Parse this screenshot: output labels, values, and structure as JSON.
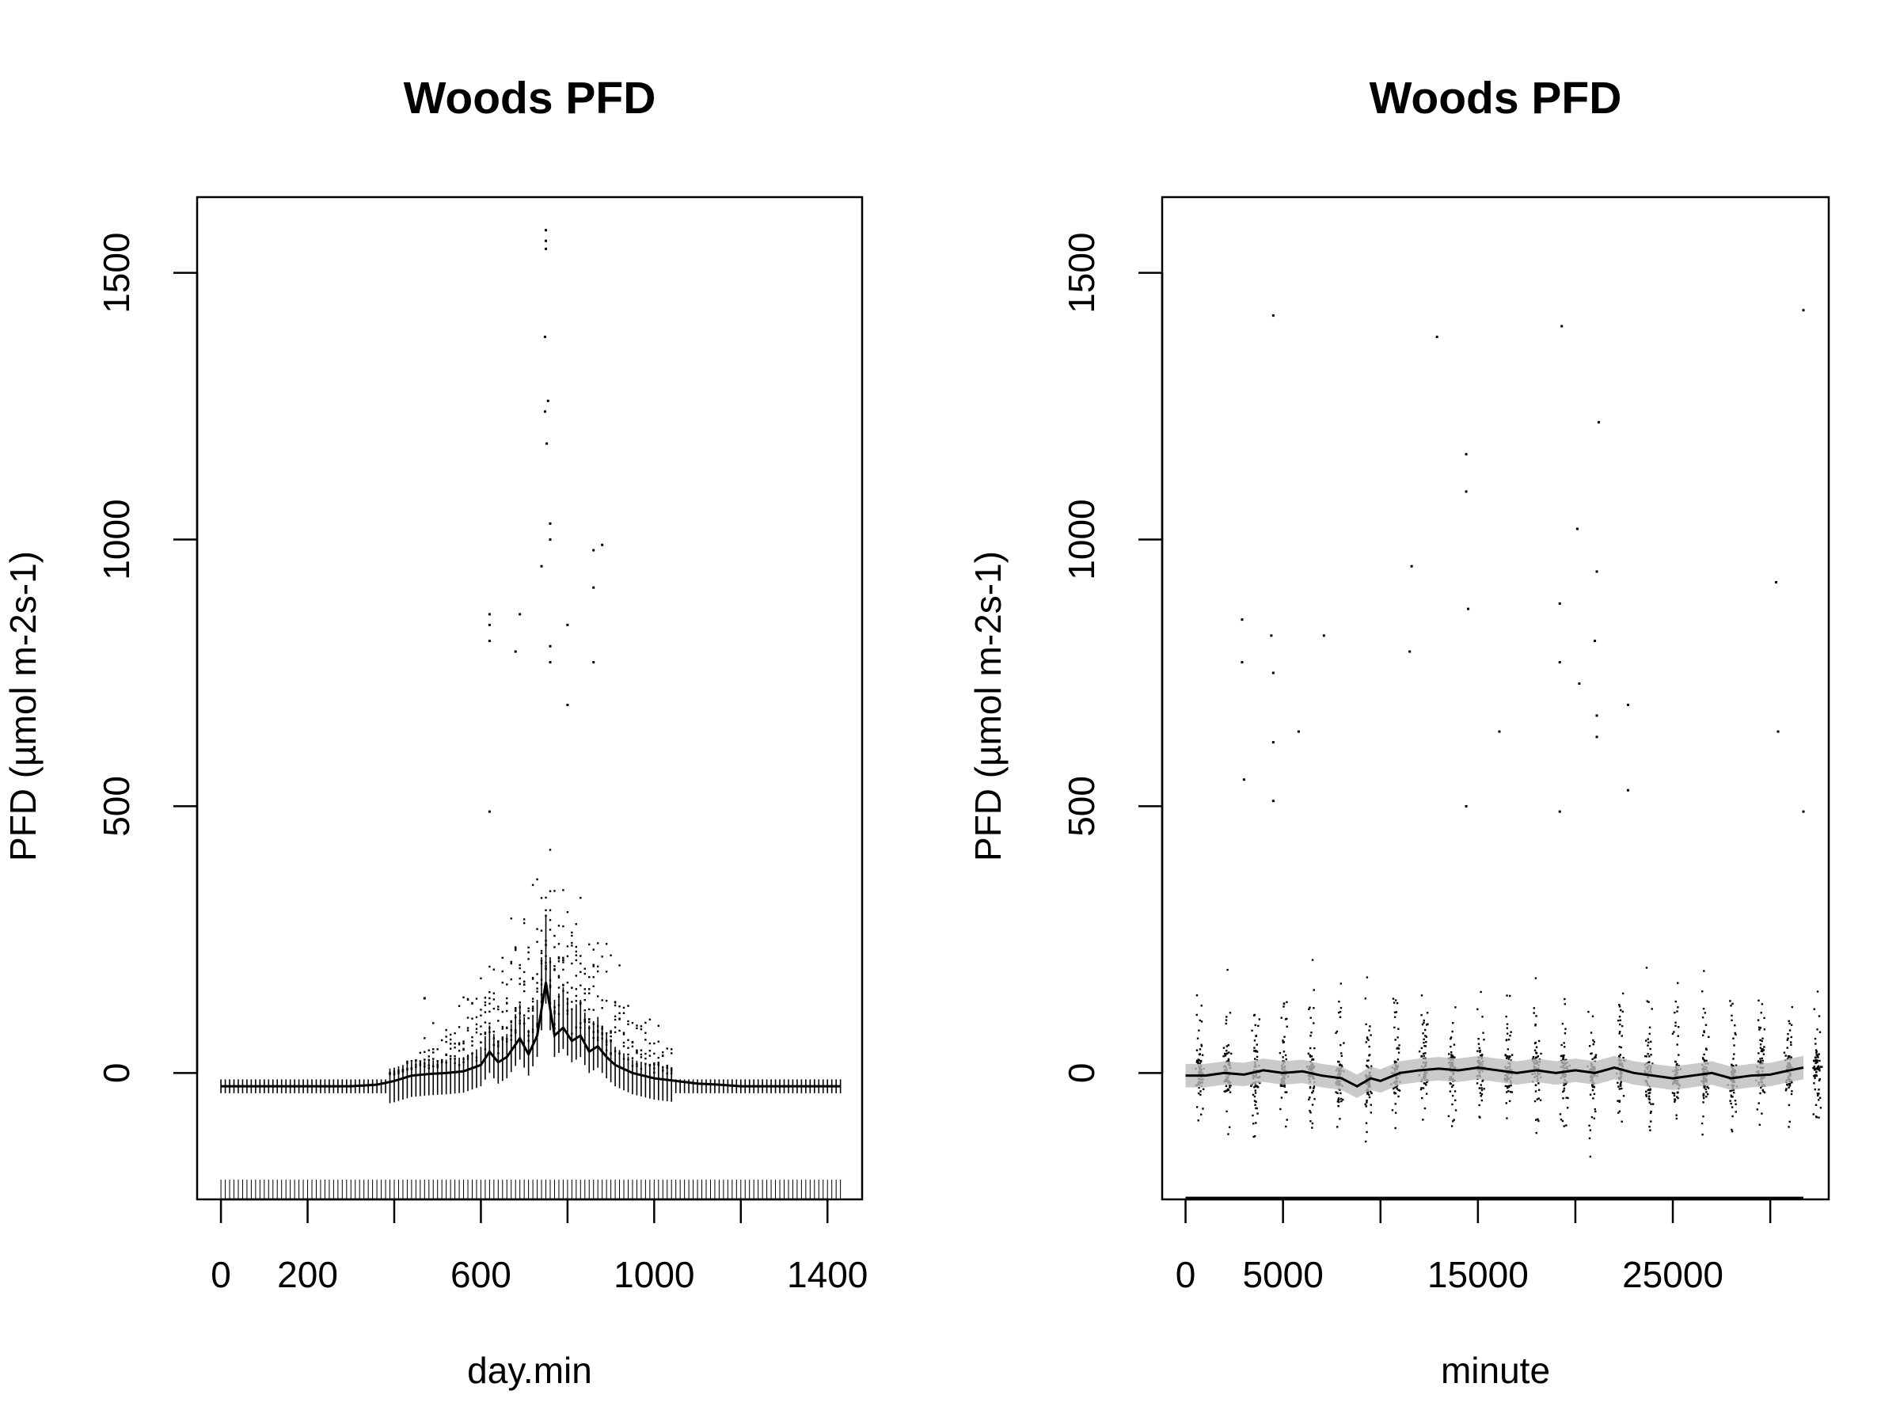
{
  "chart_data": [
    {
      "type": "scatter",
      "title": "Woods PFD",
      "xlabel": "day.min",
      "ylabel": "PFD (µmol m-2s-1)",
      "xlim": [
        -55,
        1480
      ],
      "ylim": [
        -237,
        1642
      ],
      "xticks": [
        0,
        200,
        400,
        600,
        800,
        1000,
        1200,
        1400
      ],
      "xtick_labels": [
        "0",
        "200",
        "",
        "600",
        "",
        "1000",
        "",
        "1400"
      ],
      "yticks": [
        0,
        500,
        1000,
        1500
      ],
      "ytick_labels": [
        "0",
        "500",
        "1000",
        "1500"
      ],
      "rug": "minute-of-day ticks along bottom",
      "smooth_line": {
        "x": [
          0,
          100,
          200,
          300,
          360,
          400,
          440,
          480,
          520,
          560,
          600,
          620,
          640,
          660,
          690,
          710,
          730,
          750,
          770,
          790,
          810,
          830,
          850,
          870,
          890,
          910,
          950,
          1000,
          1050,
          1100,
          1150,
          1200,
          1250,
          1300,
          1350,
          1430
        ],
        "y": [
          -25,
          -25,
          -25,
          -25,
          -22,
          -15,
          -5,
          -2,
          0,
          3,
          15,
          40,
          20,
          30,
          65,
          35,
          70,
          170,
          70,
          85,
          60,
          70,
          40,
          50,
          30,
          15,
          0,
          -10,
          -15,
          -20,
          -22,
          -25,
          -25,
          -25,
          -25,
          -25
        ]
      },
      "notable_points": [
        {
          "x": 750,
          "y": 1580
        },
        {
          "x": 750,
          "y": 1560
        },
        {
          "x": 750,
          "y": 1545
        },
        {
          "x": 748,
          "y": 1380
        },
        {
          "x": 755,
          "y": 1260
        },
        {
          "x": 748,
          "y": 1240
        },
        {
          "x": 752,
          "y": 1180
        },
        {
          "x": 760,
          "y": 1030
        },
        {
          "x": 760,
          "y": 1000
        },
        {
          "x": 740,
          "y": 950
        },
        {
          "x": 880,
          "y": 990
        },
        {
          "x": 860,
          "y": 980
        },
        {
          "x": 620,
          "y": 860
        },
        {
          "x": 620,
          "y": 840
        },
        {
          "x": 620,
          "y": 810
        },
        {
          "x": 690,
          "y": 860
        },
        {
          "x": 680,
          "y": 790
        },
        {
          "x": 860,
          "y": 910
        },
        {
          "x": 800,
          "y": 840
        },
        {
          "x": 760,
          "y": 800
        },
        {
          "x": 760,
          "y": 770
        },
        {
          "x": 860,
          "y": 770
        },
        {
          "x": 800,
          "y": 690
        },
        {
          "x": 620,
          "y": 490
        },
        {
          "x": 470,
          "y": 140
        }
      ]
    },
    {
      "type": "scatter",
      "title": "Woods PFD",
      "xlabel": "minute",
      "ylabel": "PFD (µmol m-2s-1)",
      "xlim": [
        -1200,
        33000
      ],
      "ylim": [
        -237,
        1642
      ],
      "xticks": [
        0,
        5000,
        10000,
        15000,
        20000,
        25000,
        30000
      ],
      "xtick_labels": [
        "0",
        "5000",
        "",
        "15000",
        "",
        "25000",
        ""
      ],
      "yticks": [
        0,
        500,
        1000,
        1500
      ],
      "ytick_labels": [
        "0",
        "500",
        "1000",
        "1500"
      ],
      "rug": "dense bar along bottom (0 to ~31700)",
      "smooth_line": {
        "x": [
          0,
          1000,
          2000,
          3000,
          4000,
          5000,
          6000,
          7000,
          8000,
          8800,
          9500,
          10000,
          11000,
          12000,
          13000,
          14000,
          15000,
          16000,
          17000,
          18000,
          19000,
          20000,
          21000,
          22000,
          23000,
          24000,
          25000,
          26000,
          27000,
          28000,
          29000,
          30000,
          31000,
          31700
        ],
        "y": [
          -5,
          -5,
          0,
          -3,
          5,
          0,
          3,
          -5,
          -10,
          -25,
          -10,
          -15,
          0,
          5,
          8,
          5,
          10,
          5,
          0,
          5,
          0,
          5,
          0,
          10,
          0,
          -5,
          -10,
          -5,
          0,
          -10,
          -5,
          -3,
          5,
          10
        ]
      },
      "notable_points": [
        {
          "x": 4500,
          "y": 1420
        },
        {
          "x": 12900,
          "y": 1380
        },
        {
          "x": 19300,
          "y": 1400
        },
        {
          "x": 31700,
          "y": 1430
        },
        {
          "x": 14400,
          "y": 1160
        },
        {
          "x": 14400,
          "y": 1090
        },
        {
          "x": 21200,
          "y": 1220
        },
        {
          "x": 20100,
          "y": 1020
        },
        {
          "x": 11600,
          "y": 950
        },
        {
          "x": 21100,
          "y": 940
        },
        {
          "x": 30300,
          "y": 920
        },
        {
          "x": 14500,
          "y": 870
        },
        {
          "x": 19200,
          "y": 880
        },
        {
          "x": 2900,
          "y": 850
        },
        {
          "x": 7100,
          "y": 820
        },
        {
          "x": 4400,
          "y": 820
        },
        {
          "x": 11500,
          "y": 790
        },
        {
          "x": 21000,
          "y": 810
        },
        {
          "x": 2900,
          "y": 770
        },
        {
          "x": 19200,
          "y": 770
        },
        {
          "x": 4500,
          "y": 750
        },
        {
          "x": 20200,
          "y": 730
        },
        {
          "x": 22700,
          "y": 690
        },
        {
          "x": 21100,
          "y": 670
        },
        {
          "x": 16100,
          "y": 640
        },
        {
          "x": 5800,
          "y": 640
        },
        {
          "x": 30400,
          "y": 640
        },
        {
          "x": 21100,
          "y": 630
        },
        {
          "x": 4500,
          "y": 620
        },
        {
          "x": 3000,
          "y": 550
        },
        {
          "x": 22700,
          "y": 530
        },
        {
          "x": 4500,
          "y": 510
        },
        {
          "x": 14400,
          "y": 500
        },
        {
          "x": 19200,
          "y": 490
        },
        {
          "x": 31700,
          "y": 490
        }
      ]
    }
  ]
}
